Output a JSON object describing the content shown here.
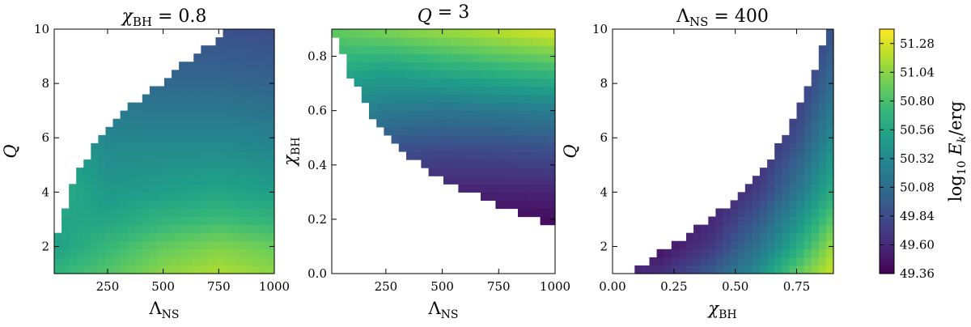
{
  "chart_data": [
    {
      "type": "heatmap",
      "title": {
        "base": "χ",
        "sub": "BH",
        "rest": " = 0.8"
      },
      "xlabel": {
        "base": "Λ",
        "sub": "NS"
      },
      "ylabel": {
        "base": "Q",
        "sub": ""
      },
      "xlim": [
        10,
        1000
      ],
      "ylim": [
        1,
        10
      ],
      "xticks": [
        250,
        500,
        750,
        1000
      ],
      "xtick_labels": [
        "250",
        "500",
        "750",
        "1000"
      ],
      "yticks": [
        2,
        4,
        6,
        8,
        10
      ],
      "ytick_labels": [
        "2",
        "4",
        "6",
        "8",
        "10"
      ],
      "boundary": {
        "x": [
          10,
          25,
          50,
          100,
          200,
          300,
          400,
          500,
          600,
          700,
          800,
          900,
          1000
        ],
        "y": [
          1.2,
          2.3,
          3.2,
          4.4,
          5.8,
          6.7,
          7.5,
          8.1,
          8.8,
          9.4,
          10,
          10,
          10
        ]
      },
      "filled_side": "below",
      "value_grid": {
        "x": [
          10,
          250,
          500,
          750,
          1000
        ],
        "y": [
          1,
          2,
          3,
          4,
          6,
          8,
          10
        ],
        "z": [
          [
            50.7,
            50.85,
            51.05,
            51.15,
            51.05
          ],
          [
            50.5,
            50.72,
            50.9,
            51.0,
            50.92
          ],
          [
            50.55,
            50.55,
            50.68,
            50.75,
            50.68
          ],
          [
            50.65,
            50.45,
            50.5,
            50.55,
            50.5
          ],
          [
            50.55,
            50.3,
            50.3,
            50.3,
            50.26
          ],
          [
            50.4,
            50.1,
            50.05,
            50.05,
            50.0
          ],
          [
            50.2,
            49.92,
            49.86,
            49.86,
            49.84
          ]
        ]
      }
    },
    {
      "type": "heatmap",
      "title": {
        "base": "Q",
        "sub": "",
        "rest": " = 3"
      },
      "xlabel": {
        "base": "Λ",
        "sub": "NS"
      },
      "ylabel": {
        "base": "χ",
        "sub": "BH"
      },
      "xlim": [
        10,
        1000
      ],
      "ylim": [
        0.0,
        0.9
      ],
      "xticks": [
        250,
        500,
        750,
        1000
      ],
      "xtick_labels": [
        "250",
        "500",
        "750",
        "1000"
      ],
      "yticks": [
        0.0,
        0.2,
        0.4,
        0.6,
        0.8
      ],
      "ytick_labels": [
        "0.0",
        "0.2",
        "0.4",
        "0.6",
        "0.8"
      ],
      "boundary": {
        "x": [
          10,
          50,
          100,
          200,
          300,
          400,
          500,
          600,
          700,
          800,
          900,
          1000
        ],
        "y": [
          0.9,
          0.82,
          0.72,
          0.57,
          0.47,
          0.4,
          0.35,
          0.31,
          0.27,
          0.24,
          0.21,
          0.16
        ]
      },
      "filled_side": "above",
      "value_grid": {
        "x": [
          10,
          250,
          500,
          750,
          1000
        ],
        "y": [
          0.15,
          0.3,
          0.45,
          0.6,
          0.75,
          0.9
        ],
        "z": [
          [
            49.45,
            49.4,
            49.38,
            49.37,
            49.38
          ],
          [
            49.7,
            49.62,
            49.55,
            49.55,
            49.56
          ],
          [
            50.0,
            49.85,
            49.8,
            49.82,
            49.85
          ],
          [
            50.3,
            50.2,
            50.15,
            50.18,
            50.22
          ],
          [
            50.6,
            50.52,
            50.6,
            50.68,
            50.75
          ],
          [
            50.9,
            51.0,
            51.1,
            51.2,
            51.3
          ]
        ]
      }
    },
    {
      "type": "heatmap",
      "title": {
        "base": "Λ",
        "sub": "NS",
        "rest": " = 400"
      },
      "xlabel": {
        "base": "χ",
        "sub": "BH"
      },
      "ylabel": {
        "base": "Q",
        "sub": ""
      },
      "xlim": [
        0.0,
        0.9
      ],
      "ylim": [
        1,
        10
      ],
      "xticks": [
        0.0,
        0.25,
        0.5,
        0.75
      ],
      "xtick_labels": [
        "0.00",
        "0.25",
        "0.50",
        "0.75"
      ],
      "yticks": [
        2,
        4,
        6,
        8,
        10
      ],
      "ytick_labels": [
        "2",
        "4",
        "6",
        "8",
        "10"
      ],
      "boundary": {
        "x": [
          0.08,
          0.1,
          0.2,
          0.3,
          0.4,
          0.5,
          0.6,
          0.65,
          0.7,
          0.75,
          0.8,
          0.85,
          0.88
        ],
        "y": [
          1,
          1.2,
          1.8,
          2.4,
          3.0,
          3.8,
          4.7,
          5.3,
          6.0,
          6.9,
          7.9,
          9.1,
          10
        ]
      },
      "filled_side": "right",
      "value_grid": {
        "x": [
          0.0,
          0.2,
          0.4,
          0.6,
          0.75,
          0.9
        ],
        "y": [
          1,
          2,
          4,
          6,
          8,
          10
        ],
        "z": [
          [
            49.55,
            49.65,
            49.95,
            50.4,
            50.9,
            51.25
          ],
          [
            49.4,
            49.45,
            49.7,
            50.15,
            50.6,
            51.1
          ],
          [
            49.36,
            49.38,
            49.45,
            49.75,
            50.15,
            50.65
          ],
          [
            49.36,
            49.36,
            49.4,
            49.55,
            49.85,
            50.35
          ],
          [
            49.36,
            49.36,
            49.38,
            49.45,
            49.65,
            50.1
          ],
          [
            49.36,
            49.36,
            49.36,
            49.4,
            49.55,
            49.9
          ]
        ]
      }
    }
  ],
  "colorbar": {
    "label": {
      "base": "log",
      "sub": "10",
      "rest": " E",
      "rest_sub": "k",
      "unit": "/erg"
    },
    "vmin": 49.36,
    "vmax": 51.4,
    "ticks": [
      49.36,
      49.6,
      49.84,
      50.08,
      50.32,
      50.56,
      50.8,
      51.04,
      51.28
    ],
    "tick_labels": [
      "49.36",
      "49.60",
      "49.84",
      "50.08",
      "50.32",
      "50.56",
      "50.80",
      "51.04",
      "51.28"
    ],
    "colormap": "viridis",
    "stops": [
      "#440154",
      "#482878",
      "#3e4989",
      "#31688e",
      "#26828e",
      "#1f9e89",
      "#35b779",
      "#6ece58",
      "#b5de2b",
      "#fde725"
    ]
  }
}
